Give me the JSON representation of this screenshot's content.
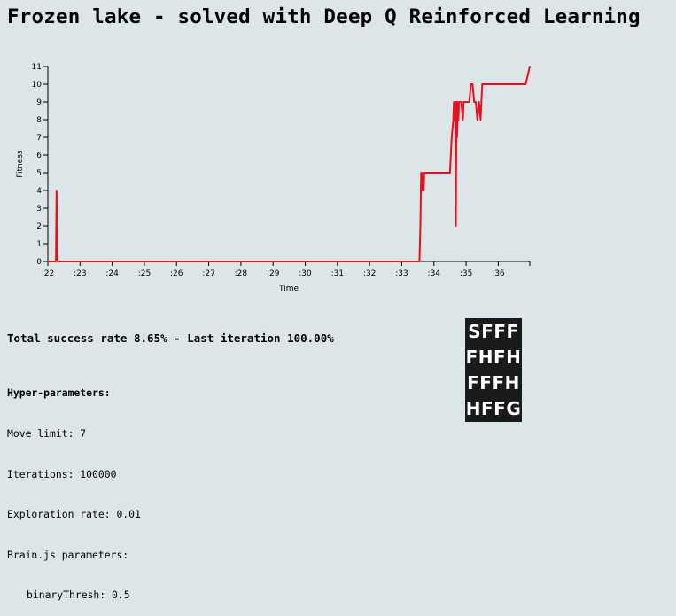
{
  "title": "Frozen lake - solved with Deep Q Reinforced Learning",
  "chart_data": {
    "type": "line",
    "xlabel": "Time",
    "ylabel": "Fitness",
    "ylim": [
      0,
      11
    ],
    "yticks": [
      0,
      1,
      2,
      3,
      4,
      5,
      6,
      7,
      8,
      9,
      10,
      11
    ],
    "xticks": [
      ":22",
      ":23",
      ":24",
      ":25",
      ":26",
      ":27",
      ":28",
      ":29",
      ":30",
      ":31",
      ":32",
      ":33",
      ":34",
      ":35",
      ":36"
    ],
    "xlim": [
      22.0,
      36.98
    ],
    "grid": false,
    "legend": "none",
    "line_color": "#e8101c",
    "x": [
      22.0,
      22.25,
      22.27,
      22.3,
      22.32,
      33.55,
      33.58,
      33.6,
      33.62,
      33.65,
      33.68,
      33.7,
      33.72,
      33.8,
      34.5,
      34.55,
      34.6,
      34.62,
      34.64,
      34.66,
      34.68,
      34.7,
      34.72,
      34.74,
      34.76,
      34.78,
      34.8,
      34.85,
      34.9,
      34.92,
      34.95,
      35.1,
      35.15,
      35.2,
      35.25,
      35.3,
      35.35,
      35.4,
      35.45,
      35.5,
      36.85,
      36.98
    ],
    "values": [
      0,
      0,
      4,
      0,
      0,
      0,
      2,
      5,
      4,
      5,
      4,
      5,
      5,
      5,
      5,
      7,
      8,
      9,
      8,
      9,
      2,
      9,
      7,
      9,
      8,
      9,
      9,
      9,
      8,
      9,
      9,
      9,
      10,
      10,
      9,
      9,
      8,
      9,
      8,
      10,
      10,
      11
    ]
  },
  "results": {
    "summary": "Total success rate 8.65% - Last iteration 100.00%"
  },
  "hyper_parameters": {
    "heading": "Hyper-parameters:",
    "move_limit": "Move limit: 7",
    "iterations": "Iterations: 100000",
    "exploration_rate": "Exploration rate: 0.01",
    "brain_heading": "Brain.js parameters:",
    "binary_thresh": "binaryThresh: 0.5"
  },
  "lake_grid": {
    "rows": [
      "SFFF",
      "FHFH",
      "FFFH",
      "HFFG"
    ],
    "background": "#1a1a1a",
    "text_color": "#ffffff"
  },
  "colors": {
    "background": "#dce6e8",
    "line": "#e8101c"
  }
}
